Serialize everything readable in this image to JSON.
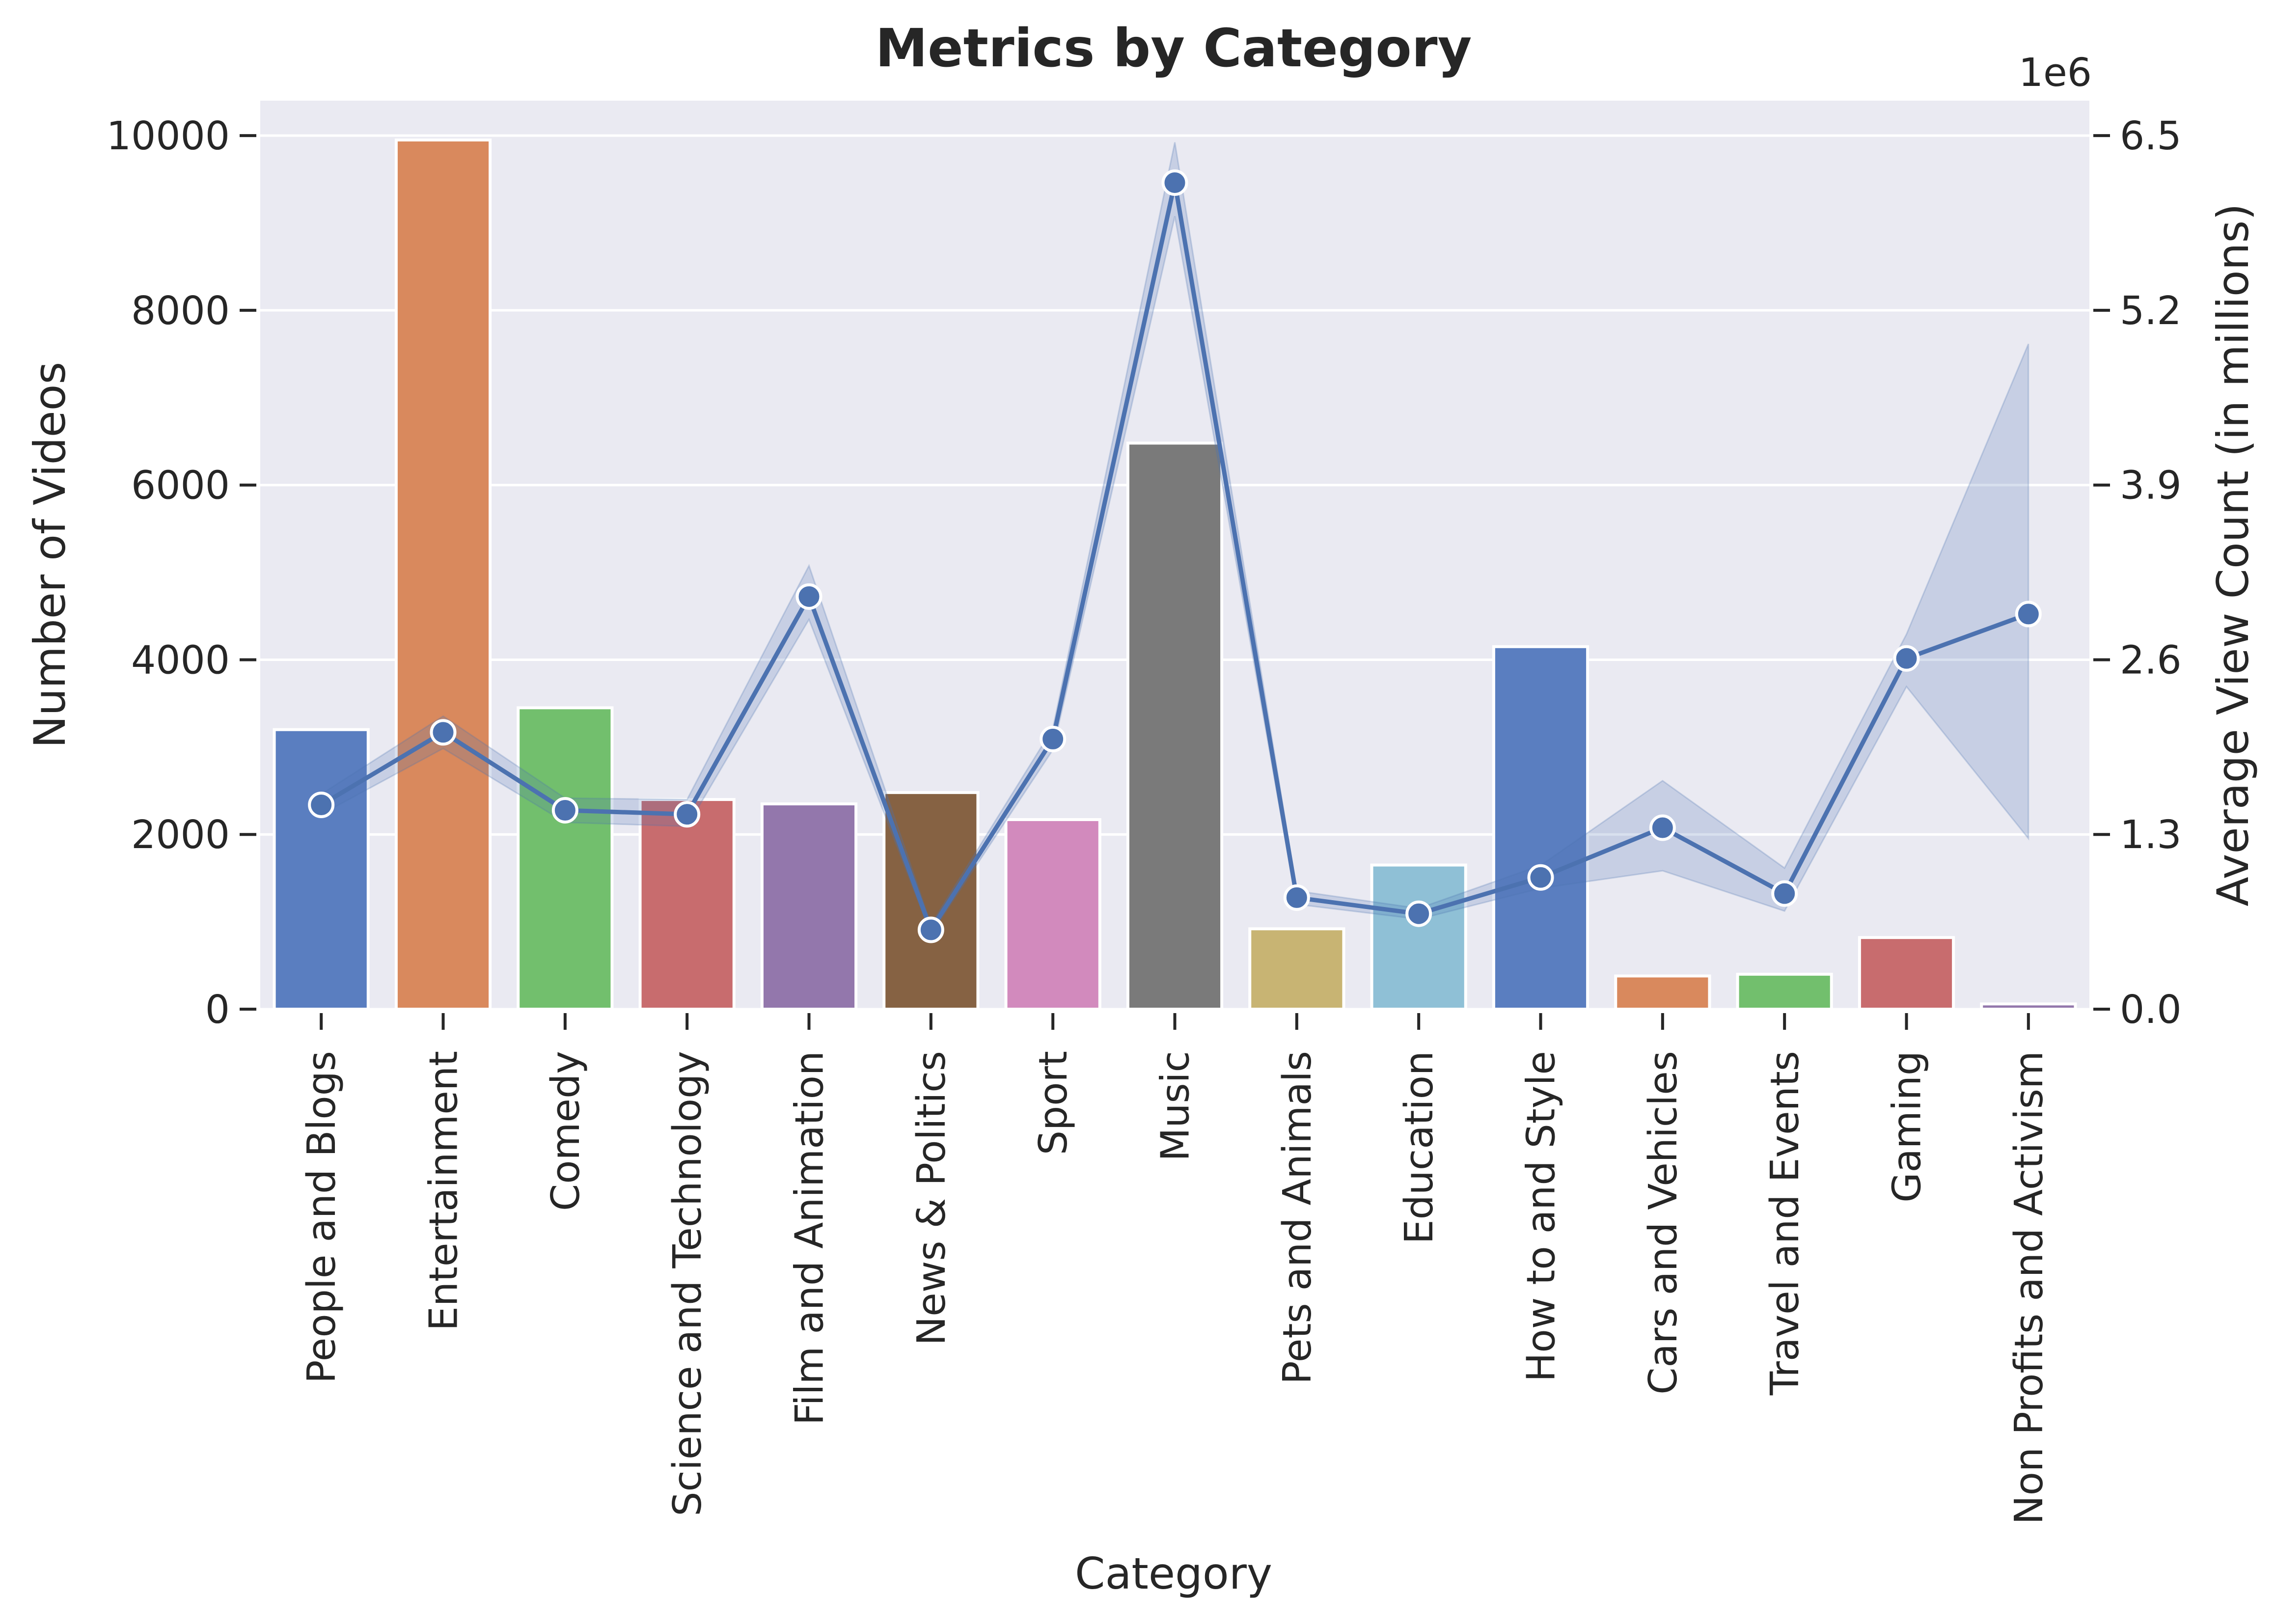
{
  "chart_data": {
    "type": "bar",
    "title": "Metrics by Category",
    "xlabel": "Category",
    "ylabel": "Number of Videos",
    "y2label": "Average View Count (in millions)",
    "y2_offset_text": "1e6",
    "ylim": [
      0,
      10400
    ],
    "y2lim": [
      0,
      6760000
    ],
    "yticks": [
      0,
      2000,
      4000,
      6000,
      8000,
      10000
    ],
    "y2ticks": [
      0.0,
      1.3,
      2.6,
      3.9,
      5.2,
      6.5
    ],
    "grid": true,
    "categories": [
      "People and Blogs",
      "Entertainment",
      "Comedy",
      "Science and Technology",
      "Film and Animation",
      "News & Politics",
      "Sport",
      "Music",
      "Pets and Animals",
      "Education",
      "How to and Style",
      "Cars and Vehicles",
      "Travel and Events",
      "Gaming",
      "Non Profits and Activism"
    ],
    "series": [
      {
        "kind": "bar",
        "axis": "left",
        "values": [
          3200,
          9950,
          3450,
          2400,
          2350,
          2480,
          2170,
          6480,
          920,
          1650,
          4150,
          380,
          400,
          820,
          60
        ]
      },
      {
        "kind": "line",
        "axis": "right",
        "color": "#4c72b0",
        "values": [
          1520000,
          2060000,
          1480000,
          1450000,
          3070000,
          590000,
          2010000,
          6150000,
          830000,
          710000,
          980000,
          1350000,
          860000,
          2610000,
          2940000
        ],
        "ci_low": [
          1450000,
          1940000,
          1390000,
          1360000,
          2900000,
          560000,
          1930000,
          5900000,
          780000,
          670000,
          900000,
          1030000,
          730000,
          2400000,
          1270000
        ],
        "ci_high": [
          1600000,
          2180000,
          1570000,
          1560000,
          3300000,
          630000,
          2090000,
          6450000,
          880000,
          750000,
          1070000,
          1700000,
          1050000,
          2790000,
          4950000
        ]
      }
    ],
    "bar_colors": [
      "#5a7ec0",
      "#d9895d",
      "#72bf6d",
      "#c86c6e",
      "#9377ac",
      "#866243",
      "#d28abd",
      "#7a7a7a",
      "#c8b473",
      "#8fc0d6",
      "#5a7ec0",
      "#d9895d",
      "#72bf6d",
      "#c86c6e",
      "#9377ac"
    ],
    "colors": {
      "plot_background": "#eaeaf2",
      "grid": "#ffffff",
      "text": "#262626",
      "line": "#4c72b0"
    }
  }
}
